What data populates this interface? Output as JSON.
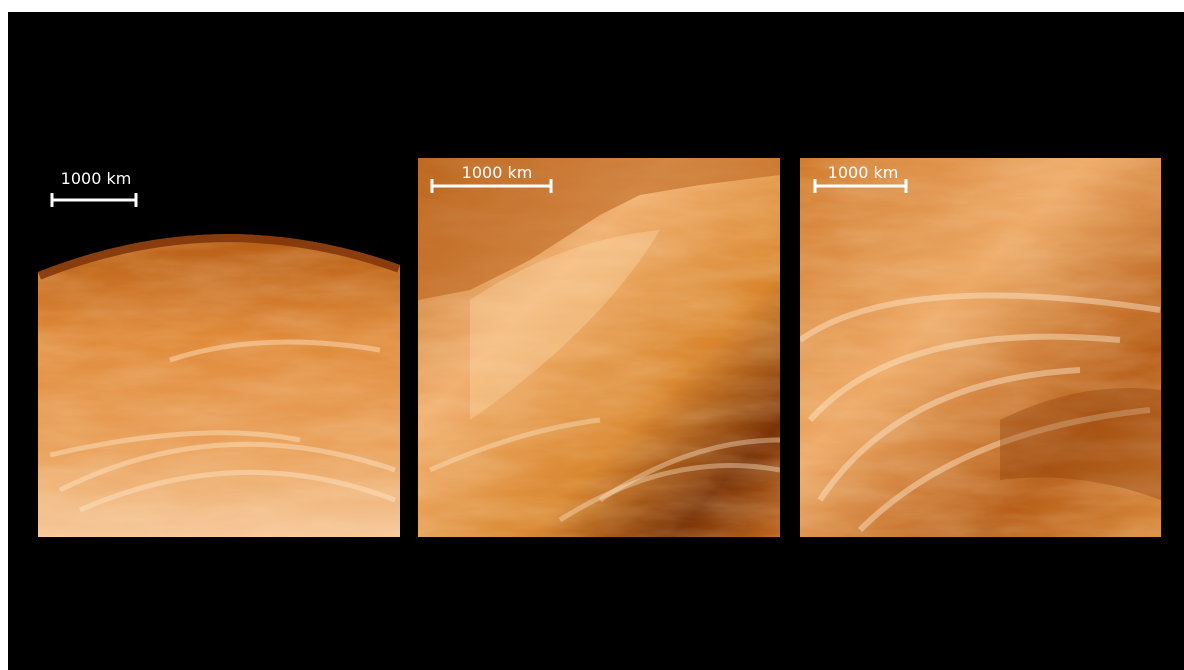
{
  "panels": [
    {
      "scale_bar": "1000 km"
    },
    {
      "scale_bar": "1000 km"
    },
    {
      "scale_bar": "1000 km"
    }
  ]
}
